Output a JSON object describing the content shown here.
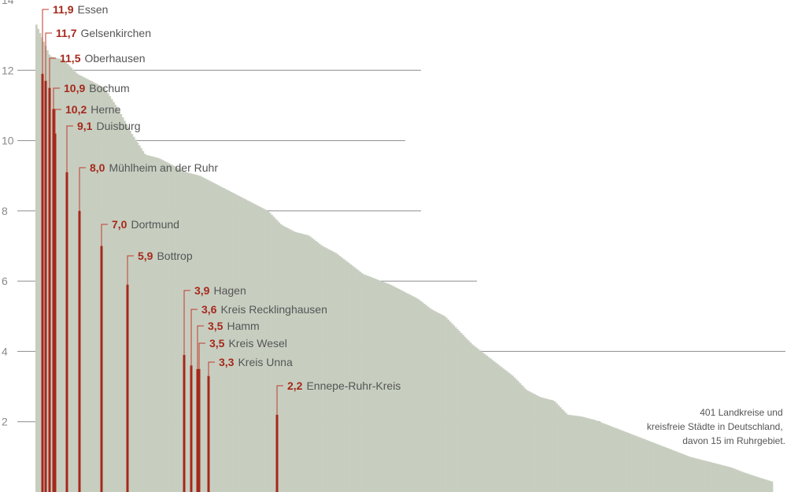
{
  "chart_data": {
    "type": "bar",
    "ylim": [
      0,
      14
    ],
    "yticks": [
      "2",
      "4",
      "6",
      "8",
      "10",
      "12",
      "14"
    ],
    "grid": "horizontal lines at tick values",
    "colors": {
      "bars": "#c7cec0",
      "highlight": "#a5281b",
      "grid": "#8c8c8c",
      "leader": "#c0392b"
    },
    "bars_total": 401,
    "distribution_ranked_values": [
      13.3,
      12.4,
      12.3,
      11.9,
      11.7,
      11.5,
      10.9,
      10.2,
      9.6,
      9.5,
      9.3,
      9.1,
      9.0,
      8.8,
      8.6,
      8.4,
      8.2,
      8.0,
      7.6,
      7.4,
      7.3,
      7.0,
      6.8,
      6.5,
      6.2,
      6.05,
      5.9,
      5.7,
      5.5,
      5.2,
      5.0,
      4.6,
      4.2,
      3.9,
      3.6,
      3.3,
      2.9,
      2.7,
      2.6,
      2.2,
      2.15,
      2.05,
      1.9,
      1.75,
      1.6,
      1.45,
      1.3,
      1.15,
      1.0,
      0.9,
      0.8,
      0.7,
      0.55,
      0.42,
      0.3
    ],
    "highlighted": [
      {
        "value": "11,9",
        "name": "Essen"
      },
      {
        "value": "11,7",
        "name": "Gelsenkirchen"
      },
      {
        "value": "11,5",
        "name": "Oberhausen"
      },
      {
        "value": "10,9",
        "name": "Bochum"
      },
      {
        "value": "10,2",
        "name": "Herne"
      },
      {
        "value": "9,1",
        "name": "Duisburg"
      },
      {
        "value": "8,0",
        "name": "Mühlheim an der Ruhr"
      },
      {
        "value": "7,0",
        "name": "Dortmund"
      },
      {
        "value": "5,9",
        "name": "Bottrop"
      },
      {
        "value": "3,9",
        "name": "Hagen"
      },
      {
        "value": "3,6",
        "name": "Kreis Recklinghausen"
      },
      {
        "value": "3,5",
        "name": "Hamm"
      },
      {
        "value": "3,5",
        "name": "Kreis Wesel"
      },
      {
        "value": "3,3",
        "name": "Kreis Unna"
      },
      {
        "value": "2,2",
        "name": "Ennepe-Ruhr-Kreis"
      }
    ],
    "annotation": [
      "401 Landkreise und",
      "kreisfreie Städte in Deutschland,",
      "davon 15 im Ruhrgebiet."
    ]
  }
}
